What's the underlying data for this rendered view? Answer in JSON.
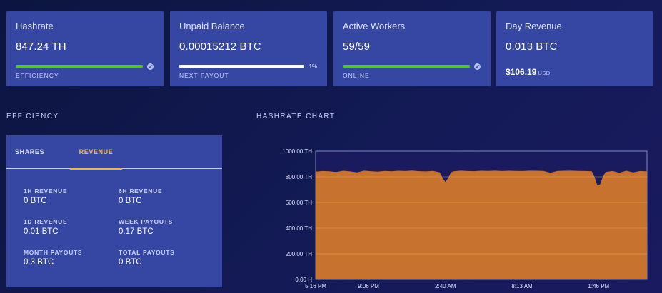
{
  "cards": {
    "hashrate": {
      "title": "Hashrate",
      "value": "847.24 TH",
      "sub": "EFFICIENCY",
      "bar_fraction": 1.0
    },
    "unpaid": {
      "title": "Unpaid Balance",
      "value": "0.00015212 BTC",
      "sub": "NEXT PAYOUT",
      "pct": "1%",
      "bar_fraction": 0.01
    },
    "workers": {
      "title": "Active Workers",
      "value": "59/59",
      "sub": "ONLINE",
      "bar_fraction": 1.0
    },
    "revenue": {
      "title": "Day Revenue",
      "value": "0.013 BTC",
      "usd_value": "$106.19",
      "usd_unit": "USD"
    }
  },
  "efficiency": {
    "section_title": "EFFICIENCY",
    "tabs": [
      "SHARES",
      "REVENUE"
    ],
    "active_tab": "REVENUE",
    "stats": [
      {
        "label": "1H REVENUE",
        "value": "0 BTC"
      },
      {
        "label": "6H REVENUE",
        "value": "0 BTC"
      },
      {
        "label": "1D REVENUE",
        "value": "0.01 BTC"
      },
      {
        "label": "WEEK PAYOUTS",
        "value": "0.17 BTC"
      },
      {
        "label": "MONTH PAYOUTS",
        "value": "0.3 BTC"
      },
      {
        "label": "TOTAL PAYOUTS",
        "value": "0 BTC"
      }
    ]
  },
  "hashrate_chart": {
    "section_title": "HASHRATE CHART"
  },
  "colors": {
    "card_bg": "#3646a3",
    "accent_green": "#52c234",
    "accent_orange": "#f0b64a",
    "chart_fill": "#c8722f"
  },
  "chart_data": {
    "type": "area",
    "title": "HASHRATE CHART",
    "xlabel": "",
    "ylabel": "",
    "y_tick_labels": [
      "0.00 H",
      "200.00 TH",
      "400.00 TH",
      "600.00 TH",
      "800.00 TH",
      "1000.00 TH"
    ],
    "y_ticks": [
      0,
      200,
      400,
      600,
      800,
      1000
    ],
    "ylim": [
      0,
      1000
    ],
    "x_tick_labels": [
      "5:16 PM",
      "9:06 PM",
      "2:40 AM",
      "8:13 AM",
      "1:46 PM"
    ],
    "x_tick_positions": [
      0,
      3.83,
      9.4,
      14.95,
      20.5
    ],
    "xlim": [
      0,
      24
    ],
    "grid": true,
    "series": [
      {
        "x": [
          0,
          0.5,
          1,
          1.5,
          2,
          2.5,
          3,
          3.5,
          4,
          4.5,
          5,
          5.5,
          6,
          6.5,
          7,
          7.5,
          8,
          8.5,
          9,
          9.2,
          9.4,
          9.6,
          9.8,
          10,
          10.5,
          11,
          11.5,
          12,
          12.5,
          13,
          13.5,
          14,
          14.5,
          15,
          15.5,
          16,
          16.5,
          17,
          17.5,
          18,
          18.5,
          19,
          19.5,
          20,
          20.2,
          20.4,
          20.6,
          20.8,
          21,
          21.5,
          22,
          22.5,
          23,
          23.5,
          24
        ],
        "values": [
          840,
          845,
          843,
          838,
          847,
          842,
          835,
          848,
          844,
          840,
          846,
          843,
          847,
          845,
          849,
          844,
          842,
          846,
          835,
          790,
          760,
          790,
          835,
          843,
          848,
          845,
          844,
          847,
          846,
          848,
          845,
          847,
          846,
          845,
          848,
          847,
          846,
          832,
          845,
          847,
          848,
          846,
          845,
          843,
          800,
          735,
          740,
          800,
          838,
          845,
          832,
          847,
          835,
          845,
          842
        ]
      }
    ]
  }
}
